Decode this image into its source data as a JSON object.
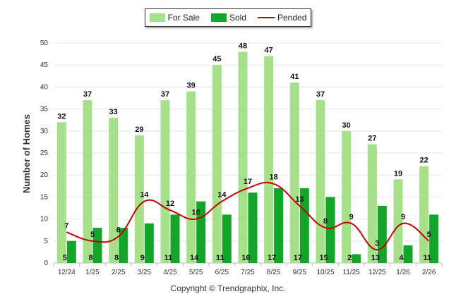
{
  "chart_data": {
    "type": "bar",
    "categories": [
      "12/24",
      "1/25",
      "2/25",
      "3/25",
      "4/25",
      "5/25",
      "6/25",
      "7/25",
      "8/25",
      "9/25",
      "10/25",
      "11/25",
      "12/25",
      "1/26",
      "2/26"
    ],
    "series": [
      {
        "name": "For Sale",
        "kind": "bar",
        "color": "#a6e08a",
        "values": [
          32,
          37,
          33,
          29,
          37,
          39,
          45,
          48,
          47,
          41,
          37,
          30,
          27,
          19,
          22
        ]
      },
      {
        "name": "Sold",
        "kind": "bar",
        "color": "#12a52a",
        "values": [
          5,
          8,
          8,
          9,
          11,
          14,
          11,
          16,
          17,
          17,
          15,
          2,
          13,
          4,
          11
        ]
      },
      {
        "name": "Pended",
        "kind": "line",
        "color": "#c00000",
        "values": [
          7,
          5,
          6,
          14,
          12,
          10,
          14,
          17,
          18,
          13,
          8,
          9,
          3,
          9,
          5
        ]
      }
    ],
    "ylabel": "Number of Homes",
    "xlabel": "",
    "ylim": [
      0,
      50
    ],
    "yticks": [
      0,
      5,
      10,
      15,
      20,
      25,
      30,
      35,
      40,
      45,
      50
    ],
    "grid": true,
    "legend_position": "top-center"
  },
  "footer": {
    "copyright": "Copyright © Trendgraphix, Inc."
  }
}
